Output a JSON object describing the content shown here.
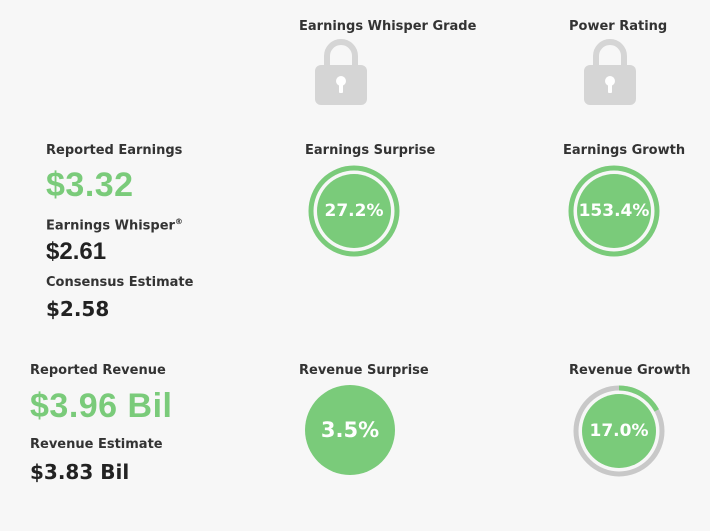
{
  "headers": {
    "whisper_grade": "Earnings Whisper Grade",
    "power_rating": "Power Rating"
  },
  "earnings": {
    "reported_label": "Reported Earnings",
    "reported_value": "$3.32",
    "whisper_label": "Earnings Whisper",
    "whisper_sup": "®",
    "whisper_value": "$2.61",
    "consensus_label": "Consensus Estimate",
    "consensus_value": "$2.58",
    "surprise_label": "Earnings Surprise",
    "surprise_value": "27.2%",
    "growth_label": "Earnings Growth",
    "growth_value": "153.4%"
  },
  "revenue": {
    "reported_label": "Reported Revenue",
    "reported_value": "$3.96 Bil",
    "estimate_label": "Revenue Estimate",
    "estimate_value": "$3.83 Bil",
    "surprise_label": "Revenue Surprise",
    "surprise_value": "3.5%",
    "growth_label": "Revenue Growth",
    "growth_value": "17.0%",
    "growth_fraction": 0.17
  },
  "colors": {
    "green": "#7acb7a",
    "grey_ring": "#c8c8c8",
    "lock": "#d5d5d5"
  },
  "icons": {
    "lock": "lock-icon"
  }
}
